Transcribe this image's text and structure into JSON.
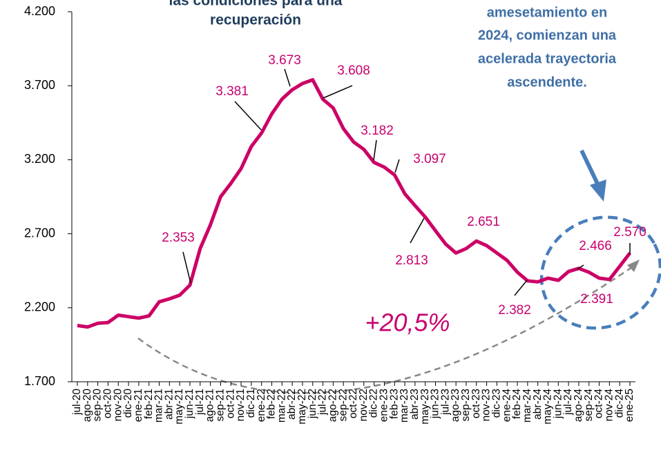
{
  "chart_data": {
    "type": "line",
    "title": [
      "las condiciones para una",
      "recuperación"
    ],
    "annotations": [
      "amesetamiento en",
      "2024, comienzan una",
      "acelerada trayectoria",
      "ascendente.",
      "+20,5%"
    ],
    "categories": [
      "jul-20",
      "ago-20",
      "sep-20",
      "oct-20",
      "nov-20",
      "dic-20",
      "ene-21",
      "feb-21",
      "mar-21",
      "abr-21",
      "may-21",
      "jun-21",
      "jul-21",
      "ago-21",
      "sep-21",
      "oct-21",
      "nov-21",
      "dic-21",
      "ene-22",
      "feb-22",
      "mar-22",
      "abr-22",
      "may-22",
      "jun-22",
      "jul-22",
      "ago-22",
      "sep-22",
      "oct-22",
      "nov-22",
      "dic-22",
      "ene-23",
      "feb-23",
      "mar-23",
      "abr-23",
      "may-23",
      "jun-23",
      "jul-23",
      "ago-23",
      "sep-23",
      "oct-23",
      "nov-23",
      "dic-23",
      "ene-24",
      "feb-24",
      "mar-24",
      "abr-24",
      "may-24",
      "jun-24",
      "jul-24",
      "ago-24",
      "sep-24",
      "oct-24",
      "nov-24",
      "dic-24",
      "ene-25"
    ],
    "values": [
      2080,
      2070,
      2095,
      2100,
      2150,
      2140,
      2130,
      2145,
      2240,
      2260,
      2285,
      2353,
      2600,
      2760,
      2950,
      3040,
      3140,
      3290,
      3381,
      3510,
      3610,
      3673,
      3715,
      3740,
      3608,
      3550,
      3410,
      3320,
      3270,
      3182,
      3150,
      3097,
      2970,
      2890,
      2813,
      2720,
      2630,
      2570,
      2600,
      2651,
      2620,
      2570,
      2520,
      2440,
      2382,
      2375,
      2400,
      2385,
      2445,
      2466,
      2440,
      2400,
      2391,
      2480,
      2570
    ],
    "value_labels": [
      null,
      null,
      null,
      null,
      null,
      null,
      null,
      null,
      null,
      null,
      null,
      "2.353",
      null,
      null,
      null,
      null,
      null,
      null,
      "3.381",
      null,
      null,
      "3.673",
      null,
      null,
      "3.608",
      null,
      null,
      null,
      null,
      "3.182",
      null,
      "3.097",
      null,
      null,
      "2.813",
      null,
      null,
      null,
      null,
      "2.651",
      null,
      null,
      null,
      null,
      "2.382",
      null,
      null,
      null,
      null,
      "2.466",
      null,
      null,
      "2.391",
      null,
      "2.570"
    ],
    "color": "#cc0066",
    "ylim": [
      1700,
      4200
    ],
    "yticks": [
      {
        "value": 1700,
        "label": "1.700"
      },
      {
        "value": 2200,
        "label": "2.200"
      },
      {
        "value": 2700,
        "label": "2.700"
      },
      {
        "value": 3200,
        "label": "3.200"
      },
      {
        "value": 3700,
        "label": "3.700"
      },
      {
        "value": 4200,
        "label": "4.200"
      }
    ]
  }
}
